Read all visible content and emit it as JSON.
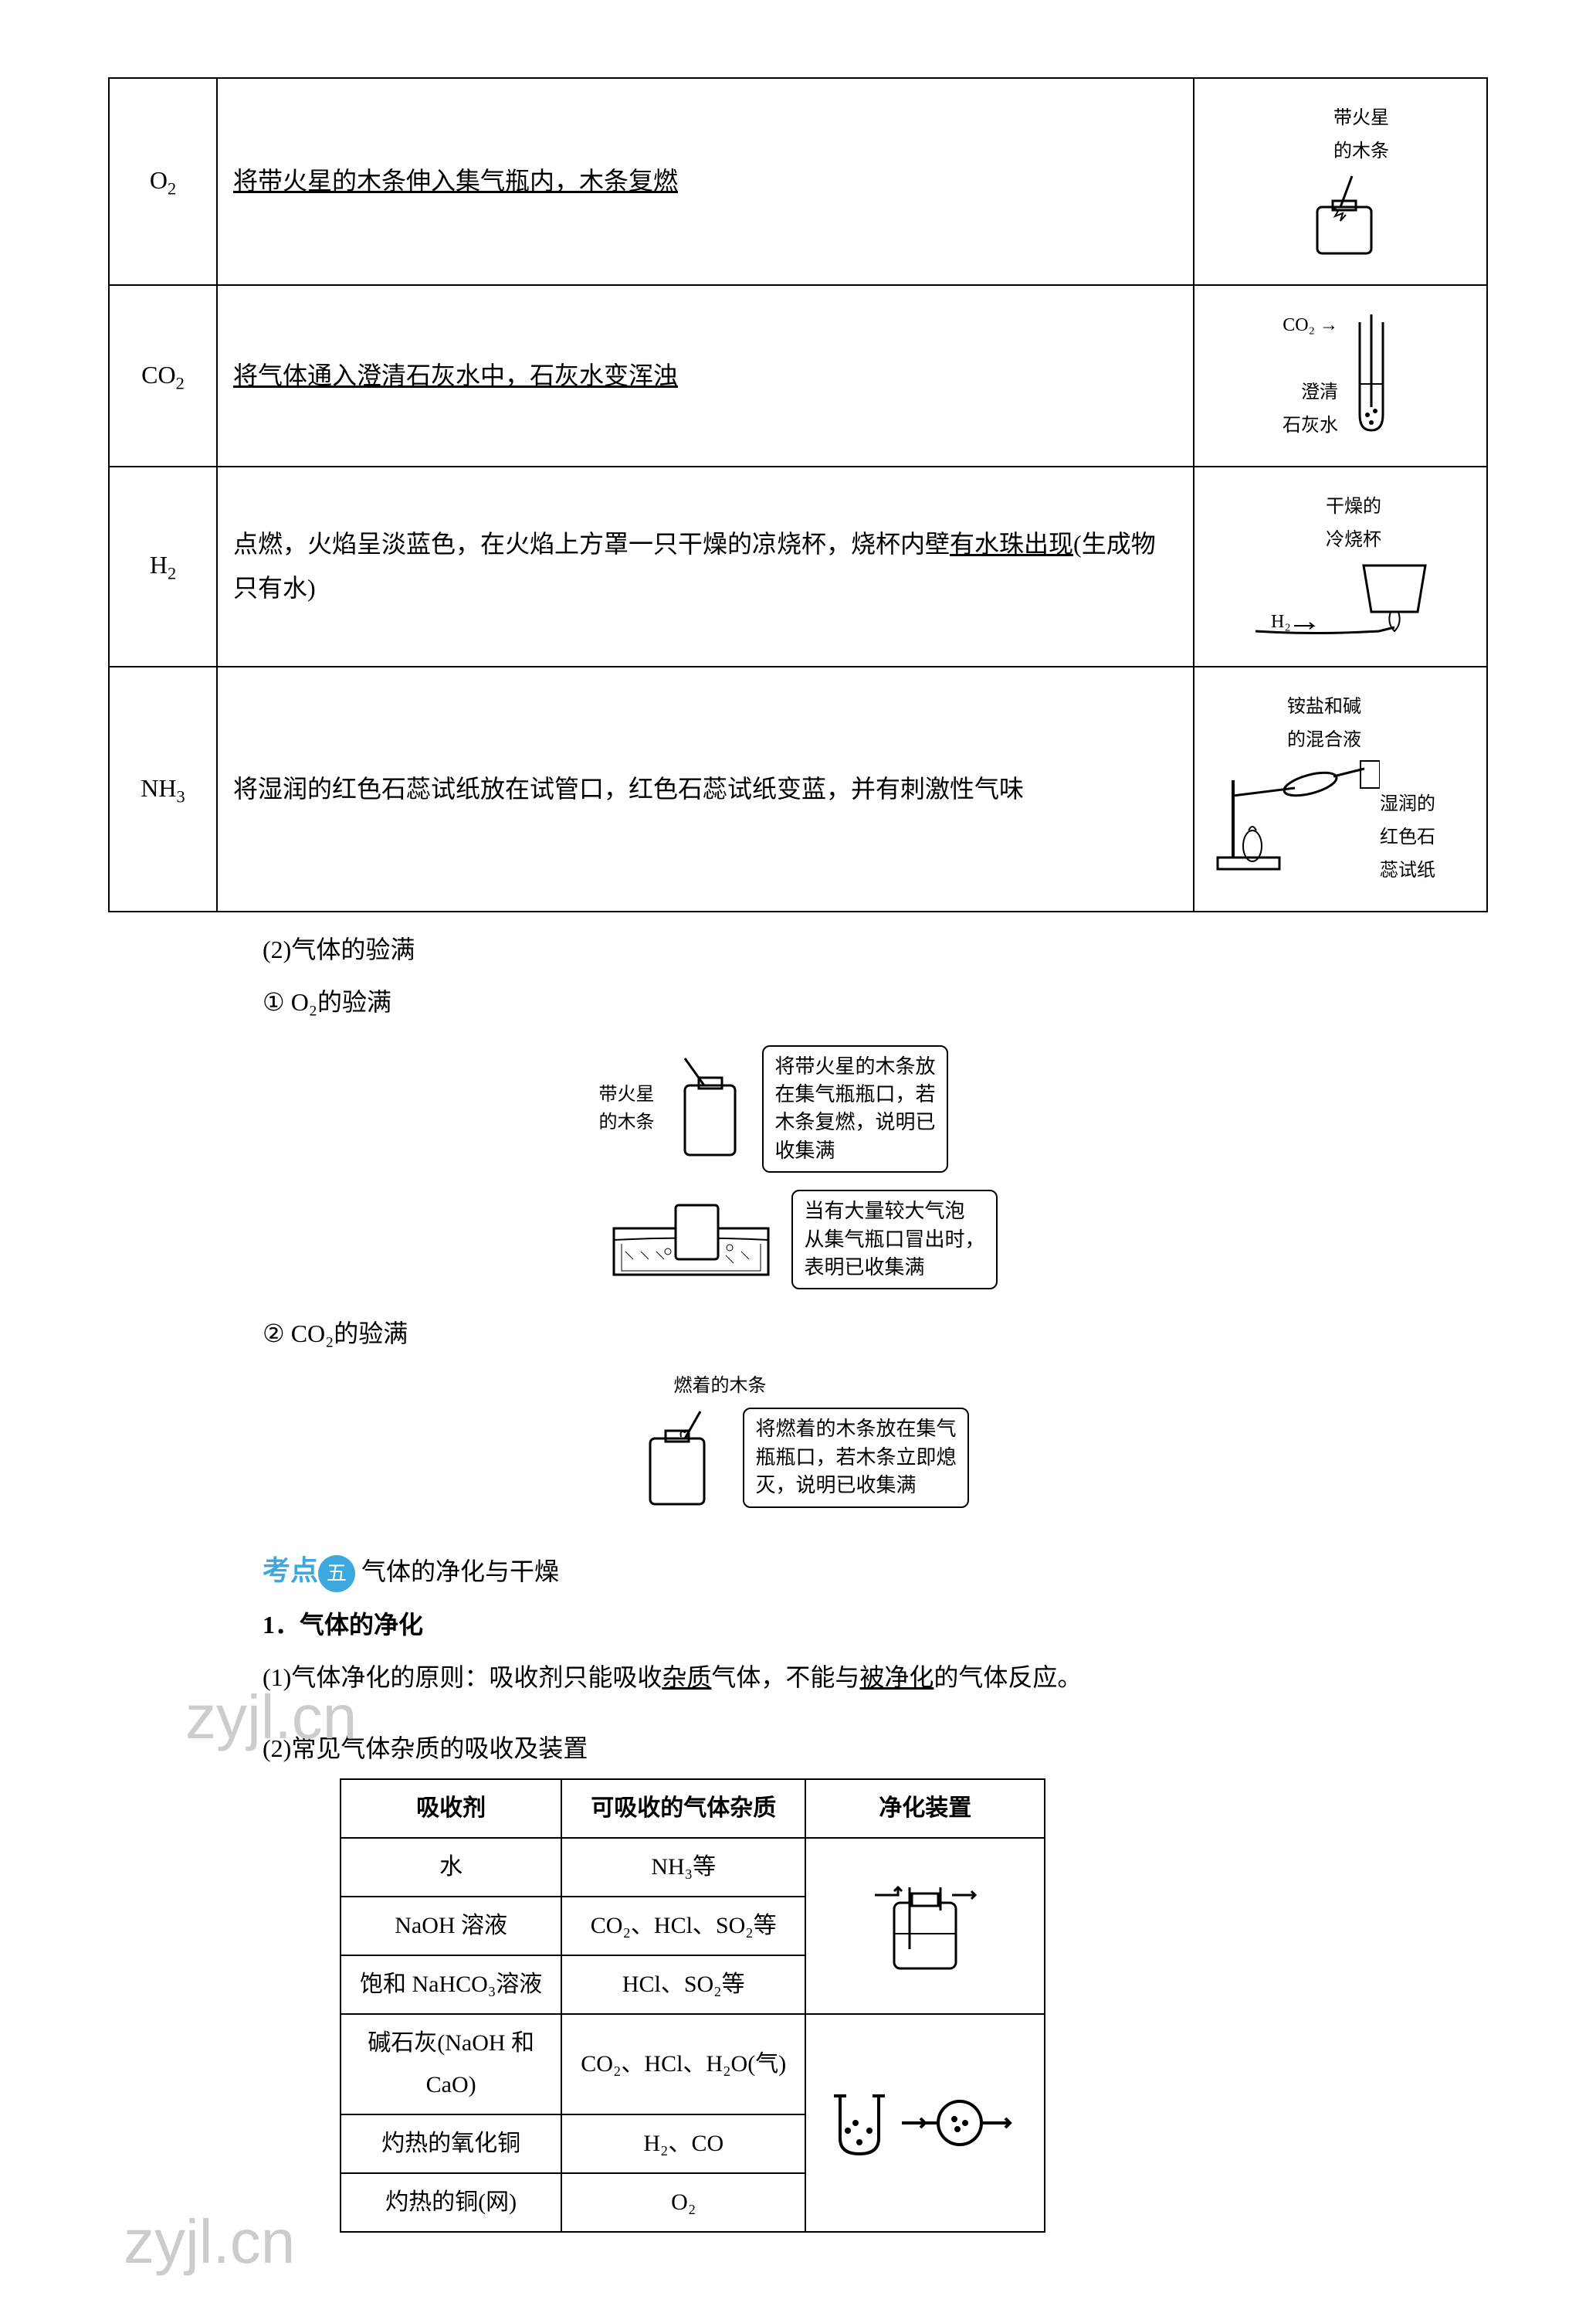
{
  "table1": {
    "rows": [
      {
        "gas_html": "O<sub class='sub'>2</sub>",
        "desc_html": "<span class='underline'>将带火星的木条伸入集气瓶内，木条复燃</span>",
        "diagram_labels": [
          "带火星",
          "的木条"
        ]
      },
      {
        "gas_html": "CO<sub class='sub'>2</sub>",
        "desc_html": "<span class='underline'>将气体通入澄清石灰水中，石灰水变浑浊</span>",
        "diagram_labels": [
          "CO₂",
          "澄清",
          "石灰水"
        ]
      },
      {
        "gas_html": "H<sub class='sub'>2</sub>",
        "desc_html": "点燃，火焰呈淡蓝色，在火焰上方罩一只干燥的凉烧杯，烧杯内壁<span class='underline'>有水珠出现</span>(生成物只有水)",
        "diagram_labels": [
          "干燥的",
          "冷烧杯",
          "H₂"
        ]
      },
      {
        "gas_html": "NH<sub class='sub'>3</sub>",
        "desc_html": "将湿润的红色石蕊试纸放在试管口，红色石蕊试纸变蓝，并有刺激性气味",
        "diagram_labels": [
          "铵盐和碱",
          "的混合液",
          "湿润的",
          "红色石",
          "蕊试纸"
        ]
      }
    ]
  },
  "section_labels": {
    "gas_full_check": "(2)气体的验满",
    "o2_full_check": "① O₂的验满",
    "co2_full_check": "② CO₂的验满"
  },
  "o2_full": {
    "label1": "带火星\n的木条",
    "caption1": "将带火星的木条放\n在集气瓶瓶口，若\n木条复燃，说明已\n收集满",
    "caption2": "当有大量较大气泡\n从集气瓶口冒出时，\n表明已收集满"
  },
  "co2_full": {
    "label1": "燃着的木条",
    "caption1": "将燃着的木条放在集气\n瓶瓶口，若木条立即熄\n灭，说明已收集满"
  },
  "topic": {
    "prefix": "考点",
    "badge": "五",
    "title": "气体的净化与干燥"
  },
  "purify": {
    "heading": "1．气体的净化",
    "line1_pre": "(1)气体净化的原则：吸收剂只能吸收",
    "line1_u1": "杂质",
    "line1_mid": "气体，不能与",
    "line1_u2": "被净化",
    "line1_suf": "的气体反应。",
    "line2": "(2)常见气体杂质的吸收及装置"
  },
  "absorb_table": {
    "headers": [
      "吸收剂",
      "可吸收的气体杂质",
      "净化装置"
    ],
    "rows": [
      [
        "水",
        "NH₃等"
      ],
      [
        "NaOH 溶液",
        "CO₂、HCl、SO₂等"
      ],
      [
        "饱和 NaHCO₃溶液",
        "HCl、SO₂等"
      ],
      [
        "碱石灰(NaOH 和 CaO)",
        "CO₂、HCl、H₂O(气)"
      ],
      [
        "灼热的氧化铜",
        "H₂、CO"
      ],
      [
        "灼热的铜(网)",
        "O₂"
      ]
    ]
  },
  "watermark": "zyjl.cn"
}
